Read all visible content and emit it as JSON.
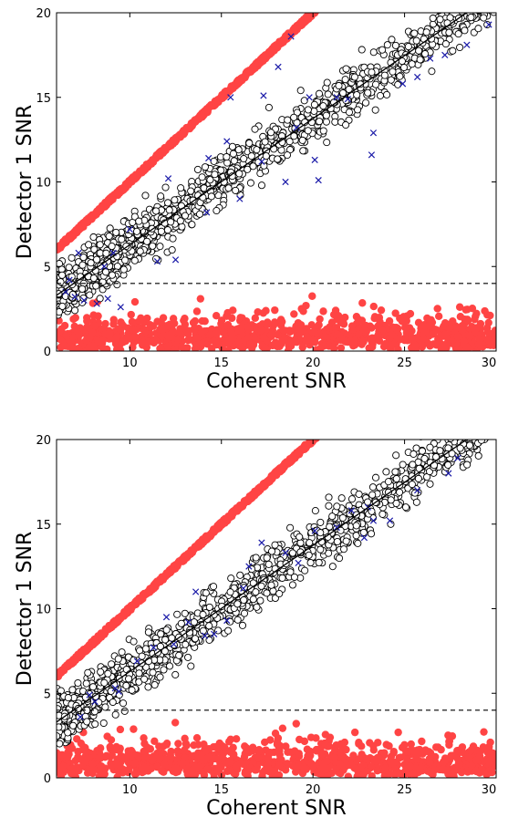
{
  "colors": {
    "background": "#ffffff",
    "red_points": "#ff4444",
    "circle_fill": "#ffffff",
    "circle_stroke": "#000000",
    "cross": "#1a1aa8",
    "fit_line": "#000000",
    "threshold_line": "#000000"
  },
  "chart_data": [
    {
      "type": "scatter",
      "title": "",
      "xlabel": "Coherent SNR",
      "ylabel": "Detector 1 SNR",
      "xlim": [
        6,
        30
      ],
      "ylim": [
        0,
        20
      ],
      "xticks": [
        10,
        15,
        20,
        25,
        30
      ],
      "yticks": [
        0,
        5,
        10,
        15,
        20
      ],
      "xtick_labels": [
        "10",
        "15",
        "20",
        "25",
        "30"
      ],
      "ytick_labels": [
        "0",
        "5",
        "10",
        "15",
        "20"
      ],
      "grid": false,
      "legend": "none",
      "threshold": {
        "y": 4,
        "style": "dashed"
      },
      "fit_line": {
        "x": [
          6,
          30
        ],
        "y": [
          3.3,
          21.2
        ]
      },
      "series": [
        {
          "marker": "filled-circle-red",
          "description_of_trend": "upper envelope",
          "x": [
            6,
            8,
            10,
            12,
            14,
            16,
            18,
            20.2
          ],
          "y": [
            6,
            8,
            10,
            12,
            14,
            16,
            18,
            20
          ]
        },
        {
          "marker": "open-circle",
          "trend_line": "fit_line",
          "x_range": [
            6,
            30
          ],
          "y_range": [
            2,
            20
          ],
          "count": 1300
        },
        {
          "marker": "x-cross-blue",
          "points": [
            [
              6.5,
              3.5
            ],
            [
              7,
              3.2
            ],
            [
              7.5,
              3.0
            ],
            [
              8.2,
              2.8
            ],
            [
              8.8,
              3.1
            ],
            [
              9.5,
              2.6
            ],
            [
              8.6,
              5.0
            ],
            [
              9.1,
              5.8
            ],
            [
              11.5,
              5.3
            ],
            [
              12.5,
              5.4
            ],
            [
              14.2,
              8.2
            ],
            [
              16.0,
              9.0
            ],
            [
              17.2,
              11.2
            ],
            [
              18.5,
              10.0
            ],
            [
              20.3,
              10.1
            ],
            [
              15.5,
              15.0
            ],
            [
              17.3,
              15.1
            ],
            [
              18.8,
              18.6
            ],
            [
              18.1,
              16.8
            ],
            [
              19.1,
              13.2
            ],
            [
              19.8,
              15.0
            ],
            [
              21.3,
              15.0
            ],
            [
              21.9,
              14.9
            ],
            [
              23.2,
              11.6
            ],
            [
              27.2,
              17.5
            ],
            [
              28.4,
              18.1
            ],
            [
              29.6,
              19.3
            ],
            [
              26.4,
              17.3
            ],
            [
              25.7,
              16.2
            ],
            [
              24.9,
              15.8
            ],
            [
              23.3,
              12.9
            ],
            [
              20.1,
              11.3
            ],
            [
              15.3,
              12.4
            ],
            [
              14.3,
              11.4
            ],
            [
              12.1,
              10.2
            ],
            [
              10.0,
              7.2
            ],
            [
              7.2,
              5.8
            ],
            [
              6.7,
              4.2
            ]
          ]
        },
        {
          "marker": "filled-circle-red",
          "description_of_trend": "noise band",
          "x_range": [
            6,
            30
          ],
          "y_range": [
            0,
            3.8
          ],
          "count": 900
        }
      ]
    },
    {
      "type": "scatter",
      "title": "",
      "xlabel": "Coherent SNR",
      "ylabel": "Detector 1 SNR",
      "xlim": [
        6,
        30
      ],
      "ylim": [
        0,
        20
      ],
      "xticks": [
        10,
        15,
        20,
        25,
        30
      ],
      "yticks": [
        0,
        5,
        10,
        15,
        20
      ],
      "xtick_labels": [
        "10",
        "15",
        "20",
        "25",
        "30"
      ],
      "ytick_labels": [
        "0",
        "5",
        "10",
        "15",
        "20"
      ],
      "grid": false,
      "legend": "none",
      "threshold": {
        "y": 4,
        "style": "dashed"
      },
      "fit_line": {
        "x": [
          6,
          30
        ],
        "y": [
          3.3,
          21.2
        ]
      },
      "series": [
        {
          "marker": "filled-circle-red",
          "description_of_trend": "upper envelope",
          "x": [
            6,
            8,
            10,
            12,
            14,
            16,
            18,
            20.2
          ],
          "y": [
            6,
            8,
            10,
            12,
            14,
            16,
            18,
            20
          ]
        },
        {
          "marker": "open-circle",
          "trend_line": "fit_line",
          "x_range": [
            6,
            30
          ],
          "y_range": [
            2,
            20
          ],
          "count": 1300
        },
        {
          "marker": "x-cross-blue",
          "points": [
            [
              7.3,
              3.6
            ],
            [
              8.1,
              4.5
            ],
            [
              9.2,
              5.3
            ],
            [
              11.3,
              7.7
            ],
            [
              12.4,
              7.9
            ],
            [
              13.2,
              9.2
            ],
            [
              14.1,
              8.4
            ],
            [
              14.6,
              8.5
            ],
            [
              15.3,
              9.3
            ],
            [
              16.5,
              12.5
            ],
            [
              17.2,
              13.9
            ],
            [
              18.5,
              13.3
            ],
            [
              19.2,
              12.7
            ],
            [
              20.1,
              14.6
            ],
            [
              21.3,
              14.8
            ],
            [
              22.1,
              15.8
            ],
            [
              23.0,
              16.0
            ],
            [
              23.3,
              15.2
            ],
            [
              24.2,
              15.2
            ],
            [
              27.4,
              18.0
            ],
            [
              27.9,
              18.9
            ],
            [
              25.7,
              17.0
            ],
            [
              22.8,
              14.2
            ],
            [
              16.2,
              11.2
            ],
            [
              13.6,
              11.0
            ],
            [
              12.0,
              9.5
            ],
            [
              10.4,
              6.9
            ],
            [
              9.4,
              5.1
            ],
            [
              7.8,
              4.9
            ]
          ]
        },
        {
          "marker": "filled-circle-red",
          "description_of_trend": "noise band",
          "x_range": [
            6,
            30
          ],
          "y_range": [
            0,
            3.8
          ],
          "count": 900
        }
      ]
    }
  ]
}
